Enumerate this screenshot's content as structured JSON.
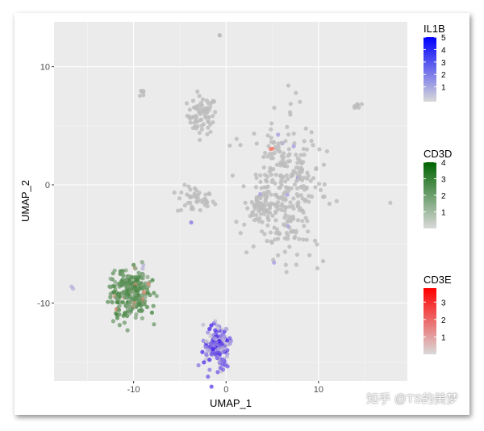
{
  "chart_data": {
    "type": "scatter",
    "title": "",
    "xlabel": "UMAP_1",
    "ylabel": "UMAP_2",
    "xlim": [
      -18.6,
      19.6
    ],
    "ylim": [
      -16.6,
      13.8
    ],
    "xticks": [
      -10,
      0,
      10
    ],
    "yticks": [
      -10,
      0,
      10
    ],
    "grid": true,
    "legend_position": "right",
    "legends": [
      {
        "title": "IL1B",
        "low": "#d9d9d9",
        "high": "#0000ff",
        "ticks": [
          1,
          2,
          3,
          4,
          5
        ],
        "max": 5.2
      },
      {
        "title": "CD3D",
        "low": "#d9d9d9",
        "high": "#006400",
        "ticks": [
          1,
          2,
          3,
          4
        ],
        "max": 4
      },
      {
        "title": "CD3E",
        "low": "#d9d9d9",
        "high": "#ff0000",
        "ticks": [
          1,
          2,
          3
        ],
        "max": 3.8
      }
    ],
    "clusters": [
      {
        "name": "top-pair",
        "cx": -0.6,
        "cy": 12.6,
        "sx": 0.25,
        "sy": 0.05,
        "n": 2,
        "gene": "none"
      },
      {
        "name": "upper-left-small",
        "cx": -9.0,
        "cy": 7.8,
        "sx": 0.15,
        "sy": 0.5,
        "n": 6,
        "gene": "none"
      },
      {
        "name": "upper-mid",
        "cx": -2.6,
        "cy": 5.9,
        "sx": 0.8,
        "sy": 0.8,
        "n": 70,
        "gene": "none"
      },
      {
        "name": "mid-left",
        "cx": -3.3,
        "cy": -1.3,
        "sx": 1.0,
        "sy": 0.6,
        "n": 45,
        "gene": "none"
      },
      {
        "name": "mid-left-purple",
        "cx": -3.7,
        "cy": -3.2,
        "sx": 0.05,
        "sy": 0.05,
        "n": 1,
        "gene": "IL1B"
      },
      {
        "name": "large-right",
        "cx": 6.4,
        "cy": -0.6,
        "sx": 2.0,
        "sy": 2.8,
        "n": 320,
        "gene": "none"
      },
      {
        "name": "large-right-arm",
        "cx": 3.6,
        "cy": -1.8,
        "sx": 0.9,
        "sy": 0.6,
        "n": 40,
        "gene": "none"
      },
      {
        "name": "red-dot",
        "cx": 4.9,
        "cy": 3.0,
        "sx": 0.1,
        "sy": 0.1,
        "n": 2,
        "gene": "CD3E"
      },
      {
        "name": "far-left",
        "cx": -16.5,
        "cy": -8.8,
        "sx": 0.1,
        "sy": 0.1,
        "n": 2,
        "gene": "IL1B-low"
      },
      {
        "name": "left-purple",
        "cx": -9.0,
        "cy": -7.0,
        "sx": 0.1,
        "sy": 0.1,
        "n": 2,
        "gene": "IL1B-low"
      },
      {
        "name": "t-cells",
        "cx": -10.3,
        "cy": -9.2,
        "sx": 1.1,
        "sy": 1.1,
        "n": 260,
        "gene": "CD3D"
      },
      {
        "name": "monocytes",
        "cx": -1.0,
        "cy": -13.7,
        "sx": 0.7,
        "sy": 0.9,
        "n": 150,
        "gene": "IL1B"
      },
      {
        "name": "right-small",
        "cx": 14.1,
        "cy": 6.7,
        "sx": 0.3,
        "sy": 0.15,
        "n": 8,
        "gene": "none"
      },
      {
        "name": "far-right",
        "cx": 17.7,
        "cy": -1.5,
        "sx": 0.05,
        "sy": 0.05,
        "n": 1,
        "gene": "none"
      }
    ]
  },
  "watermark": "知乎 @TS的美梦"
}
